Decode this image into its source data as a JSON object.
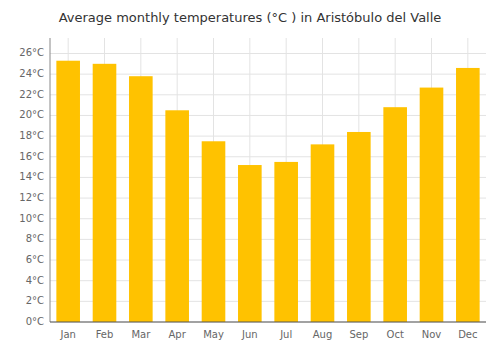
{
  "chart_data": {
    "type": "bar",
    "title": "Average monthly temperatures (°C ) in Aristóbulo del Valle",
    "categories": [
      "Jan",
      "Feb",
      "Mar",
      "Apr",
      "May",
      "Jun",
      "Jul",
      "Aug",
      "Sep",
      "Oct",
      "Nov",
      "Dec"
    ],
    "values": [
      25.3,
      25.0,
      23.8,
      20.5,
      17.5,
      15.2,
      15.5,
      17.2,
      18.4,
      20.8,
      22.7,
      24.6
    ],
    "color": "#FFC200",
    "ylim": [
      0,
      27.5
    ],
    "yticks": [
      {
        "value": 0,
        "label": "0°C"
      },
      {
        "value": 2,
        "label": "2°C"
      },
      {
        "value": 4,
        "label": "4°C"
      },
      {
        "value": 6,
        "label": "6°C"
      },
      {
        "value": 8,
        "label": "8°C"
      },
      {
        "value": 10,
        "label": "10°C"
      },
      {
        "value": 12,
        "label": "12°C"
      },
      {
        "value": 14,
        "label": "14°C"
      },
      {
        "value": 16,
        "label": "16°C"
      },
      {
        "value": 18,
        "label": "18°C"
      },
      {
        "value": 20,
        "label": "20°C"
      },
      {
        "value": 22,
        "label": "22°C"
      },
      {
        "value": 24,
        "label": "24°C"
      },
      {
        "value": 26,
        "label": "26°C"
      }
    ],
    "grid": true
  }
}
